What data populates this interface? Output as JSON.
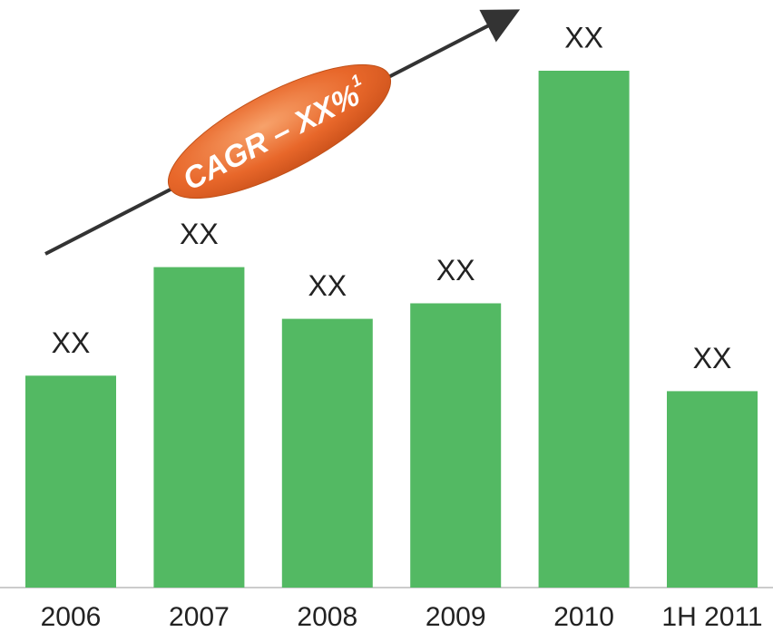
{
  "chart_data": {
    "type": "bar",
    "categories": [
      "2006",
      "2007",
      "2008",
      "2009",
      "2010",
      "1H 2011"
    ],
    "values": [
      41,
      62,
      52,
      55,
      100,
      38
    ],
    "value_labels": [
      "XX",
      "XX",
      "XX",
      "XX",
      "XX",
      "XX"
    ],
    "color": "#53b963",
    "annotation": "CAGR – XX%",
    "annotation_superscript": "1"
  }
}
